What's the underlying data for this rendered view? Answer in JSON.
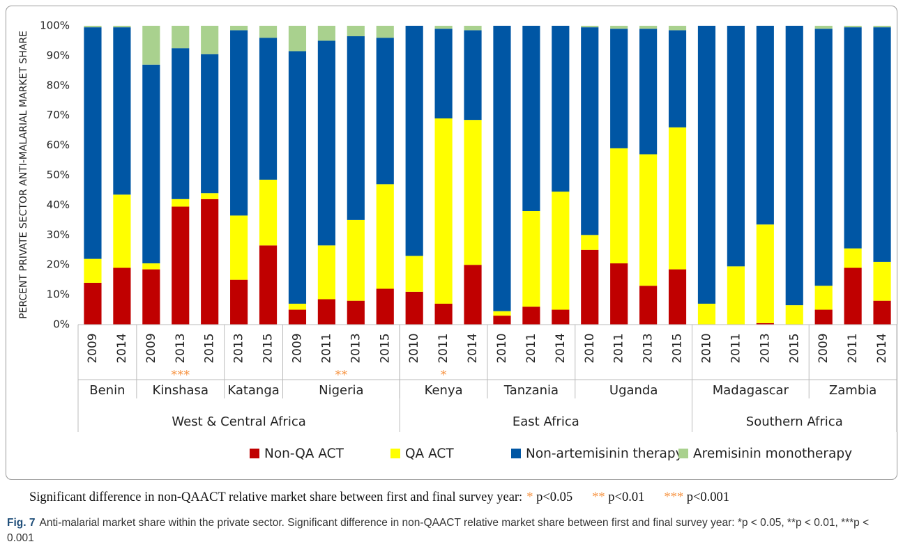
{
  "chart_data": {
    "type": "stacked_bar",
    "y_label": "PERCENT PRIVATE SECTOR ANTI-MALARIAL MARKET SHARE",
    "categories": [
      [
        "2009",
        "Benin",
        "West & Central Africa"
      ],
      [
        "2014",
        "Benin",
        "West & Central Africa"
      ],
      [
        "2009",
        "Kinshasa",
        "West & Central Africa"
      ],
      [
        "2013",
        "Kinshasa",
        "West & Central Africa"
      ],
      [
        "2015",
        "Kinshasa",
        "West & Central Africa"
      ],
      [
        "2013",
        "Katanga",
        "West & Central Africa"
      ],
      [
        "2015",
        "Katanga",
        "West & Central Africa"
      ],
      [
        "2009",
        "Nigeria",
        "West & Central Africa"
      ],
      [
        "2011",
        "Nigeria",
        "West & Central Africa"
      ],
      [
        "2013",
        "Nigeria",
        "West & Central Africa"
      ],
      [
        "2015",
        "Nigeria",
        "West & Central Africa"
      ],
      [
        "2010",
        "Kenya",
        "East Africa"
      ],
      [
        "2011",
        "Kenya",
        "East Africa"
      ],
      [
        "2014",
        "Kenya",
        "East Africa"
      ],
      [
        "2010",
        "Tanzania",
        "East Africa"
      ],
      [
        "2011",
        "Tanzania",
        "East Africa"
      ],
      [
        "2014",
        "Tanzania",
        "East Africa"
      ],
      [
        "2010",
        "Uganda",
        "East Africa"
      ],
      [
        "2011",
        "Uganda",
        "East Africa"
      ],
      [
        "2013",
        "Uganda",
        "East Africa"
      ],
      [
        "2015",
        "Uganda",
        "East Africa"
      ],
      [
        "2010",
        "Madagascar",
        "Southern Africa"
      ],
      [
        "2011",
        "Madagascar",
        "Southern Africa"
      ],
      [
        "2013",
        "Madagascar",
        "Southern Africa"
      ],
      [
        "2015",
        "Madagascar",
        "Southern Africa"
      ],
      [
        "2009",
        "Zambia",
        "Southern Africa"
      ],
      [
        "2011",
        "Zambia",
        "Southern Africa"
      ],
      [
        "2014",
        "Zambia",
        "Southern Africa"
      ]
    ],
    "markers": [
      null,
      null,
      null,
      "***",
      null,
      null,
      null,
      null,
      "**",
      null,
      null,
      null,
      "*",
      null,
      null,
      null,
      null,
      null,
      null,
      null,
      null,
      null,
      null,
      null,
      null,
      null,
      null,
      null
    ],
    "series": [
      {
        "name": "Non-QA ACT",
        "color": "#c00000",
        "values": [
          14,
          19,
          18.5,
          39.5,
          42,
          15,
          26.5,
          5,
          8.5,
          8,
          12,
          11,
          7,
          20,
          3,
          6,
          5,
          25,
          20.5,
          13,
          18.5,
          0,
          0,
          0.5,
          0,
          5,
          19,
          8
        ]
      },
      {
        "name": "QA ACT",
        "color": "#ffff00",
        "values": [
          8,
          24.5,
          2,
          2.5,
          2,
          21.5,
          22,
          2,
          18,
          27,
          35,
          12,
          62,
          48.5,
          1.5,
          32,
          39.5,
          5,
          38.5,
          44,
          47.5,
          7,
          19.5,
          33,
          6.5,
          8,
          6.5,
          13
        ]
      },
      {
        "name": "Non-artemisinin therapy",
        "color": "#0056a4",
        "values": [
          77.5,
          56,
          66.5,
          50.5,
          46.5,
          62,
          47.5,
          84.5,
          68.5,
          61.5,
          49,
          77,
          30,
          30,
          95.5,
          62,
          55.5,
          69.5,
          40,
          42,
          32.5,
          93,
          80.5,
          66.5,
          93.5,
          86,
          74,
          78.5
        ]
      },
      {
        "name": "Aremisinin monotherapy",
        "color": "#a9d18e",
        "values": [
          0.5,
          0.5,
          13,
          7.5,
          9.5,
          1.5,
          4,
          8.5,
          5,
          3.5,
          4,
          0,
          1,
          1.5,
          0,
          0,
          0,
          0.5,
          1,
          1,
          1.5,
          0,
          0,
          0,
          0,
          1,
          0.5,
          0.5
        ]
      }
    ],
    "ylim": [
      0,
      100
    ],
    "yticks": [
      {
        "value": 0,
        "label": "0%"
      },
      {
        "value": 10,
        "label": "10%"
      },
      {
        "value": 20,
        "label": "20%"
      },
      {
        "value": 30,
        "label": "30%"
      },
      {
        "value": 40,
        "label": "40%"
      },
      {
        "value": 50,
        "label": "50%"
      },
      {
        "value": 60,
        "label": "60%"
      },
      {
        "value": 70,
        "label": "70%"
      },
      {
        "value": 80,
        "label": "80%"
      },
      {
        "value": 90,
        "label": "90%"
      },
      {
        "value": 100,
        "label": "100%"
      }
    ],
    "marker_color": "#f79646",
    "grid": false
  },
  "footnote": {
    "text": "Significant difference in non-QAACT relative market share between first and final survey year:",
    "items": [
      {
        "marker": "*",
        "label": "p<0.05"
      },
      {
        "marker": "**",
        "label": "p<0.01"
      },
      {
        "marker": "***",
        "label": "p<0.001"
      }
    ]
  },
  "caption": {
    "label": "Fig. 7",
    "text": "Anti-malarial market share within the private sector. Significant difference in non-QAACT relative market share between first and final survey year: *p < 0.05, **p < 0.01, ***p < 0.001"
  }
}
